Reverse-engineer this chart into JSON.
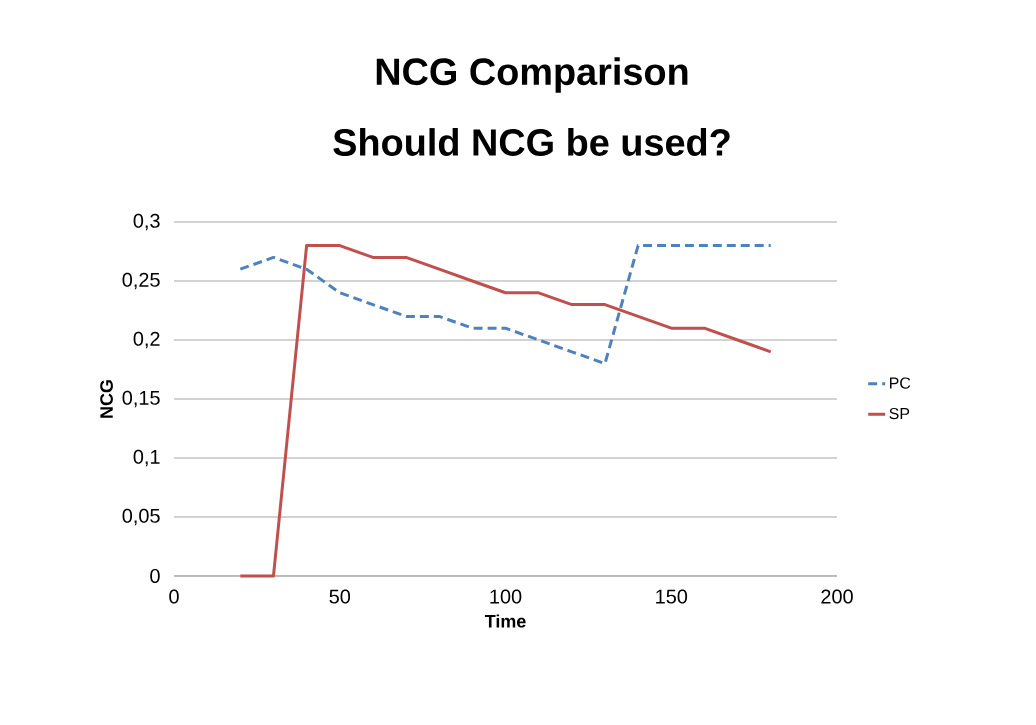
{
  "chart_data": {
    "type": "line",
    "title": "NCG Comparison",
    "subtitle": "Should NCG be used?",
    "xlabel": "Time",
    "ylabel": "NCG",
    "x": [
      20,
      30,
      40,
      50,
      60,
      70,
      80,
      90,
      100,
      110,
      120,
      130,
      140,
      150,
      160,
      170,
      180
    ],
    "series": [
      {
        "name": "PC",
        "color": "#4f81bd",
        "line_style": "dashed",
        "values": [
          0.26,
          0.27,
          0.26,
          0.24,
          0.23,
          0.22,
          0.22,
          0.21,
          0.21,
          0.2,
          0.19,
          0.18,
          0.28,
          0.28,
          0.28,
          0.28,
          0.28
        ]
      },
      {
        "name": "SP",
        "color": "#c0504d",
        "line_style": "solid",
        "values": [
          0,
          0,
          0.28,
          0.28,
          0.27,
          0.27,
          0.26,
          0.25,
          0.24,
          0.24,
          0.23,
          0.23,
          0.22,
          0.21,
          0.21,
          0.2,
          0.19
        ]
      }
    ],
    "xlim": [
      0,
      200
    ],
    "xticks": [
      0,
      50,
      100,
      150,
      200
    ],
    "ylim": [
      0,
      0.3
    ],
    "yticks": [
      0,
      {
        "value": 0.05,
        "label": "0,05"
      },
      {
        "value": 0.1,
        "label": "0,1"
      },
      {
        "value": 0.15,
        "label": "0,15"
      },
      {
        "value": 0.2,
        "label": "0,2"
      },
      {
        "value": 0.25,
        "label": "0,25"
      },
      {
        "value": 0.3,
        "label": "0,3"
      }
    ],
    "grid": "y",
    "legend": "right",
    "marker": "none"
  }
}
